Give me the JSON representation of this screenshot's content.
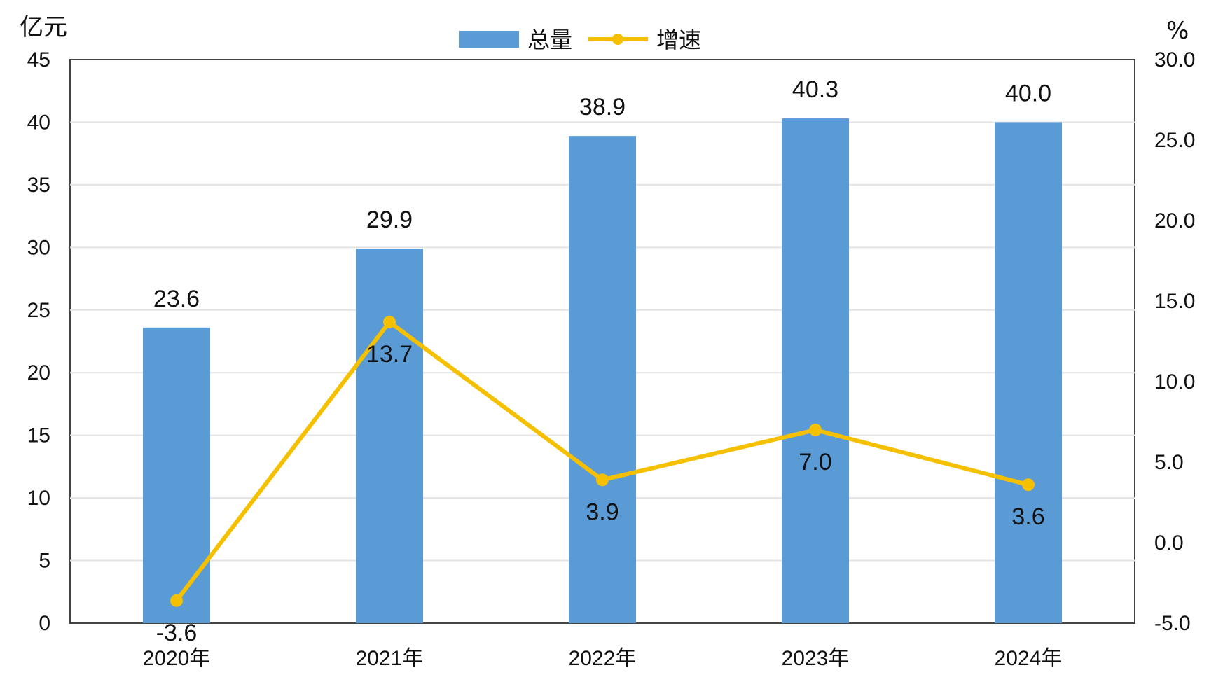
{
  "chart_data": {
    "type": "bar",
    "categories": [
      "2020年",
      "2021年",
      "2022年",
      "2023年",
      "2024年"
    ],
    "series": [
      {
        "name": "总量",
        "type": "bar",
        "axis": "left",
        "color": "#5b9bd5",
        "values": [
          23.6,
          29.9,
          38.9,
          40.3,
          40.0
        ]
      },
      {
        "name": "增速",
        "type": "line",
        "axis": "right",
        "color": "#f5c000",
        "values": [
          -3.6,
          13.7,
          3.9,
          7.0,
          3.6
        ]
      }
    ],
    "bar_labels": [
      "23.6",
      "29.9",
      "38.9",
      "40.3",
      "40.0"
    ],
    "line_labels": [
      "-3.6",
      "13.7",
      "3.9",
      "7.0",
      "3.6"
    ],
    "y_left": {
      "unit": "亿元",
      "ylim": [
        0,
        45
      ],
      "ticks": [
        "0",
        "5",
        "10",
        "15",
        "20",
        "25",
        "30",
        "35",
        "40",
        "45"
      ]
    },
    "y_right": {
      "unit": "%",
      "ylim": [
        -5,
        30
      ],
      "ticks": [
        "-5.0",
        "0.0",
        "5.0",
        "10.0",
        "15.0",
        "20.0",
        "25.0",
        "30.0"
      ]
    },
    "legend_position": "top-center",
    "grid": true
  }
}
